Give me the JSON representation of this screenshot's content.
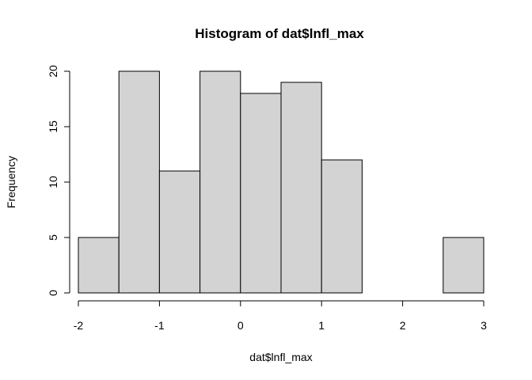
{
  "chart_data": {
    "type": "bar",
    "title": "Histogram of dat$lnfl_max",
    "xlabel": "dat$lnfl_max",
    "ylabel": "Frequency",
    "bin_edges": [
      -2,
      -1.5,
      -1,
      -0.5,
      0,
      0.5,
      1,
      1.5,
      2,
      2.5,
      3
    ],
    "values": [
      5,
      20,
      11,
      20,
      18,
      19,
      12,
      0,
      0,
      5
    ],
    "xlim": [
      -2,
      3
    ],
    "ylim": [
      0,
      20
    ],
    "x_ticks": [
      "-2",
      "-1",
      "0",
      "1",
      "2",
      "3"
    ],
    "y_ticks": [
      "0",
      "5",
      "10",
      "15",
      "20"
    ],
    "bar_fill": "#d3d3d3",
    "bar_stroke": "#000000",
    "grid": false,
    "legend": "none"
  }
}
